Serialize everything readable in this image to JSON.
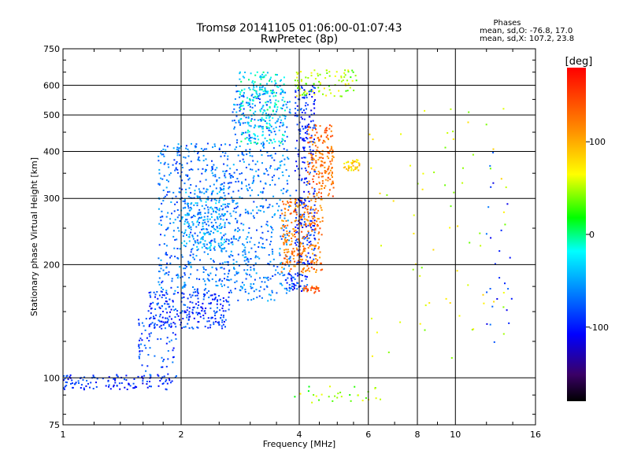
{
  "chart_data": {
    "type": "scatter",
    "title": "Tromsø 20141105 01:06:00-01:07:43",
    "subtitle": "RwPretec (8p)",
    "xlabel": "Frequency [MHz]",
    "ylabel": "Stationary phase Virtual Height [km]",
    "x_scale": "log",
    "y_scale": "log",
    "xlim": [
      1,
      16
    ],
    "ylim": [
      75,
      750
    ],
    "x_ticks": [
      1,
      2,
      4,
      6,
      8,
      10,
      16
    ],
    "y_ticks": [
      75,
      100,
      200,
      300,
      400,
      500,
      600,
      750
    ],
    "grid": true,
    "phase_stats": {
      "title": "Phases",
      "line_o": "mean, sd,O: -76.8, 17.0",
      "line_x": "mean, sd,X: 107.2, 23.8"
    },
    "colorbar": {
      "label": "[deg]",
      "range": [
        -180,
        180
      ],
      "ticks": [
        100,
        0,
        -100
      ],
      "colormap": "rainbow"
    },
    "clusters": [
      {
        "x": [
          1.0,
          1.9
        ],
        "y": [
          93,
          102
        ],
        "phase": -95,
        "n": 120
      },
      {
        "x": [
          1.55,
          1.95
        ],
        "y": [
          100,
          145
        ],
        "phase": -85,
        "n": 70
      },
      {
        "x": [
          1.65,
          2.7
        ],
        "y": [
          135,
          170
        ],
        "phase": -90,
        "n": 260
      },
      {
        "x": [
          1.75,
          2.7
        ],
        "y": [
          170,
          420
        ],
        "phase": -70,
        "n": 520
      },
      {
        "x": [
          2.0,
          2.6
        ],
        "y": [
          220,
          320
        ],
        "phase": -50,
        "n": 180
      },
      {
        "x": [
          2.7,
          3.8
        ],
        "y": [
          160,
          600
        ],
        "phase": -65,
        "n": 560
      },
      {
        "x": [
          2.8,
          3.7
        ],
        "y": [
          420,
          650
        ],
        "phase": -20,
        "n": 200
      },
      {
        "x": [
          3.7,
          4.2
        ],
        "y": [
          170,
          190
        ],
        "phase": -90,
        "n": 50
      },
      {
        "x": [
          3.9,
          4.4
        ],
        "y": [
          200,
          600
        ],
        "phase": -95,
        "n": 260
      },
      {
        "x": [
          3.6,
          4.6
        ],
        "y": [
          190,
          300
        ],
        "phase": 125,
        "n": 260
      },
      {
        "x": [
          4.2,
          4.9
        ],
        "y": [
          300,
          470
        ],
        "phase": 130,
        "n": 180
      },
      {
        "x": [
          4.1,
          4.5
        ],
        "y": [
          168,
          175
        ],
        "phase": 145,
        "n": 25
      },
      {
        "x": [
          5.2,
          5.7
        ],
        "y": [
          355,
          380
        ],
        "phase": 80,
        "n": 40
      },
      {
        "x": [
          3.9,
          5.6
        ],
        "y": [
          560,
          660
        ],
        "phase": 50,
        "n": 90
      },
      {
        "x": [
          3.6,
          6.5
        ],
        "y": [
          85,
          95
        ],
        "phase": 40,
        "n": 30
      },
      {
        "x": [
          6.0,
          13.5
        ],
        "y": [
          110,
          520
        ],
        "phase": 60,
        "n": 70
      },
      {
        "x": [
          12.0,
          14.0
        ],
        "y": [
          120,
          400
        ],
        "phase": -90,
        "n": 25
      }
    ]
  }
}
